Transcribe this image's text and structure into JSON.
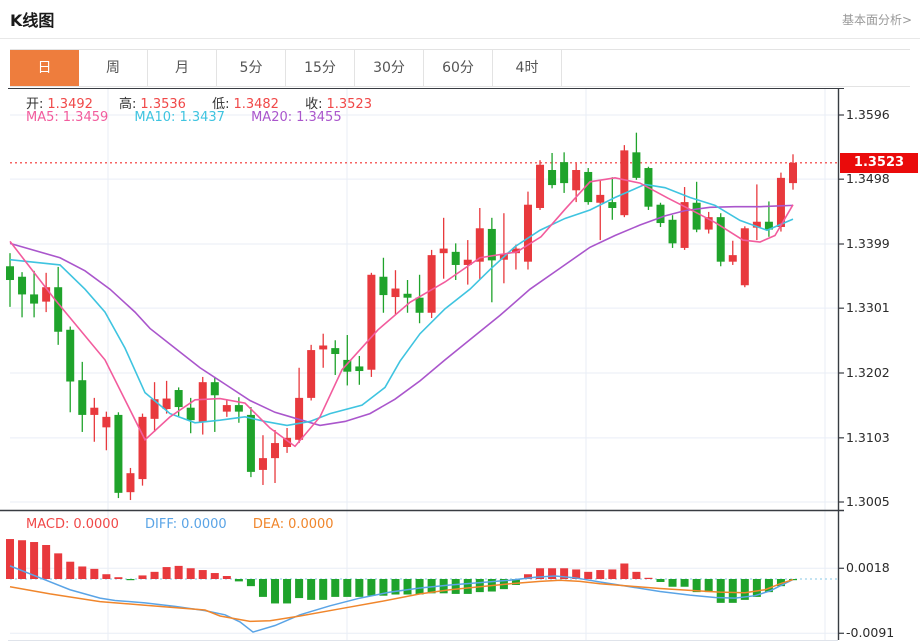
{
  "header": {
    "title": "K线图",
    "link": "基本面分析>"
  },
  "tabs": {
    "items": [
      {
        "label": "日",
        "selected": true
      },
      {
        "label": "周",
        "selected": false
      },
      {
        "label": "月",
        "selected": false
      },
      {
        "label": "5分",
        "selected": false
      },
      {
        "label": "15分",
        "selected": false
      },
      {
        "label": "30分",
        "selected": false
      },
      {
        "label": "60分",
        "selected": false
      },
      {
        "label": "4时",
        "selected": false
      }
    ]
  },
  "legend": {
    "ohlc": [
      {
        "label": "开:",
        "value": "1.3492"
      },
      {
        "label": "高:",
        "value": "1.3536"
      },
      {
        "label": "低:",
        "value": "1.3482"
      },
      {
        "label": "收:",
        "value": "1.3523"
      }
    ],
    "ma": [
      {
        "label": "MA5:",
        "value": "1.3459"
      },
      {
        "label": "MA10:",
        "value": "1.3437"
      },
      {
        "label": "MA20:",
        "value": "1.3455"
      }
    ],
    "macd": [
      {
        "label": "MACD:",
        "value": "0.0000"
      },
      {
        "label": "DIFF:",
        "value": "0.0000"
      },
      {
        "label": "DEA:",
        "value": "0.0000"
      }
    ]
  },
  "price_label": "1.3523",
  "chart_data": {
    "type": "candlestick",
    "title": "K线图",
    "timeframe_selected": "日",
    "indicator": "MACD",
    "ohlc_legend": {
      "open": 1.3492,
      "high": 1.3536,
      "low": 1.3482,
      "close": 1.3523
    },
    "current_price": 1.3523,
    "y_axis_ticks": [
      1.3596,
      1.3498,
      1.3399,
      1.3301,
      1.3202,
      1.3103,
      1.3005
    ],
    "ylim": [
      1.298,
      1.362
    ],
    "grid_vlines_x": [
      108,
      347,
      586,
      825
    ],
    "candles_ohlc": [
      [
        1.3365,
        1.3385,
        1.3303,
        1.3344
      ],
      [
        1.3349,
        1.3356,
        1.3287,
        1.3322
      ],
      [
        1.3322,
        1.3358,
        1.3287,
        1.3308
      ],
      [
        1.3311,
        1.3355,
        1.3295,
        1.3333
      ],
      [
        1.3333,
        1.3364,
        1.3245,
        1.3265
      ],
      [
        1.3268,
        1.3273,
        1.3142,
        1.3189
      ],
      [
        1.3191,
        1.3219,
        1.3112,
        1.3138
      ],
      [
        1.3138,
        1.3164,
        1.3097,
        1.3149
      ],
      [
        1.3119,
        1.3143,
        1.3084,
        1.3135
      ],
      [
        1.3138,
        1.3142,
        1.3011,
        1.3019
      ],
      [
        1.302,
        1.3057,
        1.3008,
        1.3049
      ],
      [
        1.304,
        1.314,
        1.303,
        1.3135
      ],
      [
        1.3132,
        1.3188,
        1.3112,
        1.3162
      ],
      [
        1.3147,
        1.319,
        1.314,
        1.3163
      ],
      [
        1.3176,
        1.318,
        1.3135,
        1.315
      ],
      [
        1.3149,
        1.3164,
        1.311,
        1.313
      ],
      [
        1.3127,
        1.3196,
        1.3108,
        1.3188
      ],
      [
        1.3188,
        1.3196,
        1.3112,
        1.3168
      ],
      [
        1.3143,
        1.316,
        1.3135,
        1.3153
      ],
      [
        1.3153,
        1.3165,
        1.3126,
        1.3143
      ],
      [
        1.3138,
        1.315,
        1.3043,
        1.3051
      ],
      [
        1.3054,
        1.3107,
        1.3031,
        1.3072
      ],
      [
        1.3072,
        1.3115,
        1.3034,
        1.3095
      ],
      [
        1.3089,
        1.3118,
        1.308,
        1.3103
      ],
      [
        1.31,
        1.321,
        1.3095,
        1.3164
      ],
      [
        1.3164,
        1.3245,
        1.316,
        1.3237
      ],
      [
        1.3238,
        1.3262,
        1.321,
        1.3244
      ],
      [
        1.324,
        1.3252,
        1.3199,
        1.3231
      ],
      [
        1.3222,
        1.326,
        1.3183,
        1.3204
      ],
      [
        1.3212,
        1.3228,
        1.3184,
        1.3205
      ],
      [
        1.3207,
        1.3355,
        1.3196,
        1.3352
      ],
      [
        1.3349,
        1.3378,
        1.3294,
        1.3321
      ],
      [
        1.3318,
        1.3359,
        1.3291,
        1.3331
      ],
      [
        1.3323,
        1.3344,
        1.3294,
        1.3317
      ],
      [
        1.3317,
        1.3352,
        1.3278,
        1.3294
      ],
      [
        1.3294,
        1.339,
        1.3286,
        1.3382
      ],
      [
        1.3385,
        1.3439,
        1.3346,
        1.3392
      ],
      [
        1.3387,
        1.34,
        1.3344,
        1.3367
      ],
      [
        1.3367,
        1.3405,
        1.3337,
        1.3375
      ],
      [
        1.3372,
        1.3454,
        1.3344,
        1.3423
      ],
      [
        1.3422,
        1.3439,
        1.331,
        1.3374
      ],
      [
        1.3375,
        1.3446,
        1.3339,
        1.3384
      ],
      [
        1.3385,
        1.3398,
        1.336,
        1.3392
      ],
      [
        1.3372,
        1.3479,
        1.336,
        1.3459
      ],
      [
        1.3454,
        1.3527,
        1.3451,
        1.352
      ],
      [
        1.3512,
        1.3538,
        1.3484,
        1.3489
      ],
      [
        1.3524,
        1.3539,
        1.3477,
        1.3492
      ],
      [
        1.3481,
        1.3522,
        1.3463,
        1.3512
      ],
      [
        1.3509,
        1.3515,
        1.3459,
        1.3463
      ],
      [
        1.3462,
        1.3497,
        1.3405,
        1.3474
      ],
      [
        1.3463,
        1.3501,
        1.3436,
        1.3454
      ],
      [
        1.3443,
        1.355,
        1.344,
        1.3542
      ],
      [
        1.3539,
        1.3569,
        1.3497,
        1.35
      ],
      [
        1.3515,
        1.3517,
        1.3451,
        1.3456
      ],
      [
        1.3459,
        1.3462,
        1.3425,
        1.3431
      ],
      [
        1.3436,
        1.3443,
        1.3393,
        1.34
      ],
      [
        1.3393,
        1.3486,
        1.339,
        1.3463
      ],
      [
        1.3462,
        1.3494,
        1.3417,
        1.3421
      ],
      [
        1.3421,
        1.3448,
        1.3415,
        1.344
      ],
      [
        1.344,
        1.3446,
        1.3365,
        1.3372
      ],
      [
        1.3372,
        1.3404,
        1.3367,
        1.3382
      ],
      [
        1.3336,
        1.3426,
        1.3333,
        1.3423
      ],
      [
        1.3424,
        1.349,
        1.3405,
        1.3433
      ],
      [
        1.3433,
        1.3464,
        1.341,
        1.3421
      ],
      [
        1.3425,
        1.3508,
        1.3418,
        1.35
      ],
      [
        1.3492,
        1.3536,
        1.3482,
        1.3523
      ]
    ],
    "ma5": {
      "current": 1.3459,
      "points": [
        [
          10,
          1.3403
        ],
        [
          55,
          1.3314
        ],
        [
          105,
          1.3222
        ],
        [
          145,
          1.31
        ],
        [
          170,
          1.3135
        ],
        [
          195,
          1.3161
        ],
        [
          220,
          1.3163
        ],
        [
          245,
          1.3156
        ],
        [
          270,
          1.3118
        ],
        [
          295,
          1.309
        ],
        [
          320,
          1.3135
        ],
        [
          342,
          1.3207
        ],
        [
          378,
          1.3268
        ],
        [
          410,
          1.331
        ],
        [
          445,
          1.3341
        ],
        [
          480,
          1.3378
        ],
        [
          517,
          1.3387
        ],
        [
          541,
          1.341
        ],
        [
          565,
          1.3452
        ],
        [
          590,
          1.3494
        ],
        [
          615,
          1.35
        ],
        [
          640,
          1.3492
        ],
        [
          668,
          1.3469
        ],
        [
          695,
          1.3448
        ],
        [
          715,
          1.3432
        ],
        [
          743,
          1.3405
        ],
        [
          760,
          1.3402
        ],
        [
          775,
          1.3412
        ],
        [
          793,
          1.3459
        ]
      ]
    },
    "ma10": {
      "current": 1.3437,
      "points": [
        [
          10,
          1.3375
        ],
        [
          60,
          1.3367
        ],
        [
          85,
          1.333
        ],
        [
          105,
          1.3295
        ],
        [
          125,
          1.324
        ],
        [
          145,
          1.3172
        ],
        [
          170,
          1.314
        ],
        [
          195,
          1.3126
        ],
        [
          220,
          1.313
        ],
        [
          245,
          1.3135
        ],
        [
          265,
          1.3128
        ],
        [
          287,
          1.3122
        ],
        [
          310,
          1.3128
        ],
        [
          330,
          1.314
        ],
        [
          362,
          1.3153
        ],
        [
          385,
          1.318
        ],
        [
          400,
          1.322
        ],
        [
          420,
          1.3262
        ],
        [
          445,
          1.33
        ],
        [
          470,
          1.333
        ],
        [
          490,
          1.336
        ],
        [
          515,
          1.3395
        ],
        [
          540,
          1.342
        ],
        [
          565,
          1.3438
        ],
        [
          590,
          1.3451
        ],
        [
          615,
          1.347
        ],
        [
          645,
          1.349
        ],
        [
          665,
          1.3485
        ],
        [
          690,
          1.347
        ],
        [
          715,
          1.3458
        ],
        [
          740,
          1.3435
        ],
        [
          767,
          1.342
        ],
        [
          793,
          1.3437
        ]
      ]
    },
    "ma20": {
      "current": 1.3455,
      "points": [
        [
          10,
          1.34
        ],
        [
          60,
          1.3378
        ],
        [
          85,
          1.3358
        ],
        [
          110,
          1.333
        ],
        [
          135,
          1.3295
        ],
        [
          150,
          1.327
        ],
        [
          175,
          1.324
        ],
        [
          200,
          1.321
        ],
        [
          225,
          1.3185
        ],
        [
          250,
          1.316
        ],
        [
          275,
          1.3142
        ],
        [
          295,
          1.3133
        ],
        [
          320,
          1.3122
        ],
        [
          345,
          1.3128
        ],
        [
          370,
          1.314
        ],
        [
          395,
          1.3162
        ],
        [
          420,
          1.319
        ],
        [
          445,
          1.3222
        ],
        [
          470,
          1.3253
        ],
        [
          500,
          1.329
        ],
        [
          530,
          1.333
        ],
        [
          560,
          1.3362
        ],
        [
          590,
          1.3394
        ],
        [
          615,
          1.3412
        ],
        [
          640,
          1.3428
        ],
        [
          665,
          1.3442
        ],
        [
          685,
          1.345
        ],
        [
          710,
          1.3455
        ],
        [
          735,
          1.3456
        ],
        [
          760,
          1.3456
        ],
        [
          775,
          1.3457
        ],
        [
          793,
          1.3458
        ]
      ]
    },
    "macd": {
      "current": {
        "macd": 0.0,
        "diff": 0.0,
        "dea": 0.0
      },
      "axis_ticks": [
        0.0018,
        -0.0091
      ],
      "histogram": [
        0.0067,
        0.0065,
        0.0062,
        0.0057,
        0.0043,
        0.0029,
        0.0021,
        0.0017,
        0.0008,
        0.0003,
        -0.0002,
        0.0006,
        0.0012,
        0.002,
        0.0022,
        0.0018,
        0.0015,
        0.001,
        0.0005,
        -0.0004,
        -0.0012,
        -0.003,
        -0.0041,
        -0.0041,
        -0.0032,
        -0.0035,
        -0.0035,
        -0.003,
        -0.003,
        -0.003,
        -0.0028,
        -0.0028,
        -0.0026,
        -0.0026,
        -0.0026,
        -0.0024,
        -0.0024,
        -0.0025,
        -0.0025,
        -0.0022,
        -0.0021,
        -0.0017,
        -0.001,
        0.0008,
        0.0018,
        0.0018,
        0.0018,
        0.0016,
        0.0012,
        0.0015,
        0.0016,
        0.0026,
        0.0012,
        0.0002,
        -0.0005,
        -0.0013,
        -0.0013,
        -0.0022,
        -0.0022,
        -0.004,
        -0.004,
        -0.0035,
        -0.003,
        -0.0022,
        -0.0012,
        -0.0002
      ],
      "diff_points": [
        [
          10,
          0.0022
        ],
        [
          40,
          0.0002
        ],
        [
          70,
          -0.0018
        ],
        [
          100,
          -0.0032
        ],
        [
          115,
          -0.0036
        ],
        [
          145,
          -0.004
        ],
        [
          175,
          -0.0046
        ],
        [
          205,
          -0.0053
        ],
        [
          225,
          -0.006
        ],
        [
          240,
          -0.0072
        ],
        [
          253,
          -0.0089
        ],
        [
          275,
          -0.0078
        ],
        [
          300,
          -0.006
        ],
        [
          330,
          -0.0045
        ],
        [
          360,
          -0.0032
        ],
        [
          390,
          -0.0022
        ],
        [
          420,
          -0.0015
        ],
        [
          450,
          -0.001
        ],
        [
          480,
          -0.0006
        ],
        [
          510,
          -0.0002
        ],
        [
          535,
          0.0003
        ],
        [
          555,
          0.0005
        ],
        [
          575,
          0.0002
        ],
        [
          600,
          -0.0005
        ],
        [
          630,
          -0.0013
        ],
        [
          660,
          -0.0021
        ],
        [
          690,
          -0.0027
        ],
        [
          715,
          -0.0031
        ],
        [
          735,
          -0.0032
        ],
        [
          755,
          -0.0028
        ],
        [
          770,
          -0.002
        ],
        [
          782,
          -0.001
        ],
        [
          793,
          -0.0001
        ]
      ],
      "dea_points": [
        [
          10,
          -0.0013
        ],
        [
          50,
          -0.0025
        ],
        [
          100,
          -0.0038
        ],
        [
          145,
          -0.0044
        ],
        [
          175,
          -0.0048
        ],
        [
          205,
          -0.0052
        ],
        [
          220,
          -0.0062
        ],
        [
          250,
          -0.0071
        ],
        [
          270,
          -0.007
        ],
        [
          300,
          -0.0062
        ],
        [
          340,
          -0.005
        ],
        [
          380,
          -0.0038
        ],
        [
          420,
          -0.0025
        ],
        [
          450,
          -0.0018
        ],
        [
          480,
          -0.0013
        ],
        [
          510,
          -0.0008
        ],
        [
          540,
          -0.0004
        ],
        [
          560,
          -0.0002
        ],
        [
          580,
          -0.0004
        ],
        [
          600,
          -0.0008
        ],
        [
          630,
          -0.0012
        ],
        [
          660,
          -0.0016
        ],
        [
          690,
          -0.0019
        ],
        [
          720,
          -0.0022
        ],
        [
          745,
          -0.0023
        ],
        [
          765,
          -0.0018
        ],
        [
          780,
          -0.0008
        ],
        [
          793,
          -0.0001
        ]
      ]
    },
    "colors": {
      "up": "#e8393d",
      "down": "#1fa32b",
      "price_line": "#f23030",
      "price_label_bg": "#ea0b0b",
      "ma5": "#f25c9d",
      "ma10": "#3fc4e0",
      "ma20": "#aa56cc",
      "diff": "#5aa4e6",
      "dea": "#f0862c",
      "grid": "#e9eef6",
      "axis": "#383c42",
      "zero_line": "#9fd2ea",
      "tab_selected": "#ee7d3d",
      "value_red": "#f04848"
    }
  }
}
